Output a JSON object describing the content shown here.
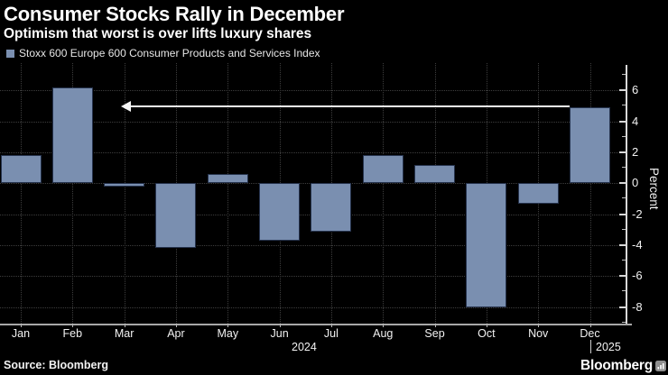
{
  "title": "Consumer Stocks Rally in December",
  "subtitle": "Optimism that worst is over lifts luxury shares",
  "legend": {
    "label": "Stoxx 600 Europe 600 Consumer Products and Services Index",
    "swatch_color": "#7a8fb0"
  },
  "chart_data": {
    "type": "bar",
    "title": "Consumer Stocks Rally in December",
    "subtitle": "Optimism that worst is over lifts luxury shares",
    "series_name": "Stoxx 600 Europe 600 Consumer Products and Services Index",
    "categories": [
      "Jan",
      "Feb",
      "Mar",
      "Apr",
      "May",
      "Jun",
      "Jul",
      "Aug",
      "Sep",
      "Oct",
      "Nov",
      "Dec"
    ],
    "values": [
      1.8,
      6.2,
      -0.2,
      -4.2,
      0.6,
      -3.7,
      -3.1,
      1.8,
      1.2,
      -8.0,
      -1.3,
      4.9
    ],
    "xlabel": "",
    "ylabel": "Percent",
    "y_ticks": [
      6,
      4,
      2,
      0,
      -2,
      -4,
      -6,
      -8
    ],
    "ylim": [
      -9.1,
      7.8
    ],
    "grid": true,
    "legend_position": "top-left",
    "bar_color": "#7a8fb0",
    "background_color": "#000000",
    "annotation": {
      "type": "arrow-left",
      "from_category": "Dec",
      "at_value": 4.9,
      "color": "#f5f5f5"
    },
    "x_year_labels": [
      {
        "text": "2024",
        "position": "center"
      },
      {
        "text": "2025",
        "position": "right-of-dec"
      }
    ]
  },
  "x_axis": {
    "year_left": "2024",
    "year_right": "2025"
  },
  "footer": {
    "source": "Source: Bloomberg",
    "brand": "Bloomberg"
  }
}
